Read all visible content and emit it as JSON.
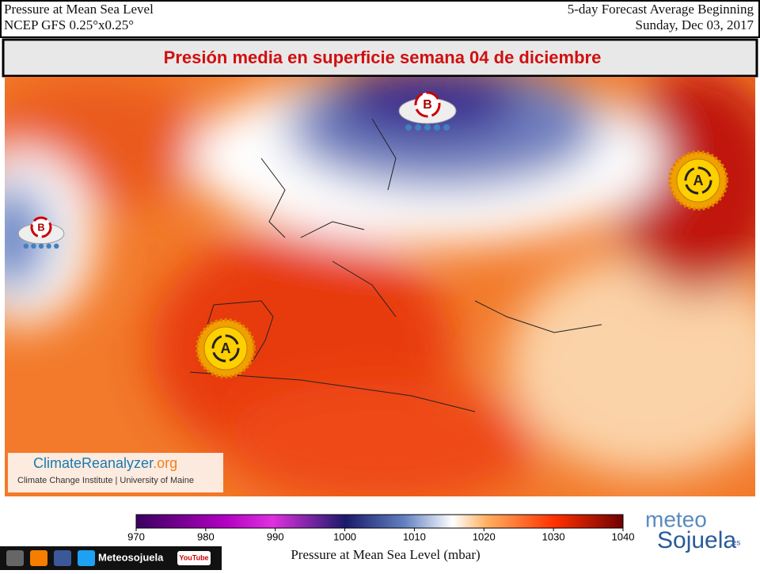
{
  "header": {
    "title_left": "Pressure at Mean Sea Level",
    "subtitle_left": "NCEP GFS 0.25°x0.25°",
    "title_right": "5-day Forecast Average Beginning",
    "subtitle_right": "Sunday, Dec 03, 2017"
  },
  "banner": "Presión media en superficie semana 04 de diciembre",
  "systems": [
    {
      "label": "B"
    },
    {
      "label": "B"
    },
    {
      "label": "A"
    },
    {
      "label": "A"
    }
  ],
  "credit": {
    "site": "ClimateReanalyzer",
    "tld": ".org",
    "institute": "Climate Change Institute | University of Maine"
  },
  "colorbar": {
    "range": [
      970,
      1040
    ],
    "ticks": [
      970,
      980,
      990,
      1000,
      1010,
      1020,
      1030,
      1040
    ],
    "label": "Pressure at Mean Sea Level (mbar)"
  },
  "footer": {
    "social": "Meteosojuela",
    "youtube": "YouTube",
    "brand_top": "meteo",
    "brand_bottom": "Sojuela",
    "brand_tld": ".es"
  }
}
